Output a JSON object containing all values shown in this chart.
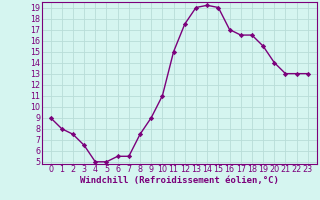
{
  "x": [
    0,
    1,
    2,
    3,
    4,
    5,
    6,
    7,
    8,
    9,
    10,
    11,
    12,
    13,
    14,
    15,
    16,
    17,
    18,
    19,
    20,
    21,
    22,
    23
  ],
  "y": [
    9.0,
    8.0,
    7.5,
    6.5,
    5.0,
    5.0,
    5.5,
    5.5,
    7.5,
    9.0,
    11.0,
    15.0,
    17.5,
    19.0,
    19.2,
    19.0,
    17.0,
    16.5,
    16.5,
    15.5,
    14.0,
    13.0,
    13.0,
    13.0
  ],
  "line_color": "#7b007b",
  "marker": "D",
  "marker_size": 2.2,
  "line_width": 1.0,
  "xlabel": "Windchill (Refroidissement éolien,°C)",
  "xlabel_fontsize": 6.5,
  "ylim": [
    4.8,
    19.5
  ],
  "yticks": [
    5,
    6,
    7,
    8,
    9,
    10,
    11,
    12,
    13,
    14,
    15,
    16,
    17,
    18,
    19
  ],
  "xticks": [
    0,
    1,
    2,
    3,
    4,
    5,
    6,
    7,
    8,
    9,
    10,
    11,
    12,
    13,
    14,
    15,
    16,
    17,
    18,
    19,
    20,
    21,
    22,
    23
  ],
  "background_color": "#d5f5f0",
  "grid_color": "#b8ddd8",
  "tick_fontsize": 5.8
}
